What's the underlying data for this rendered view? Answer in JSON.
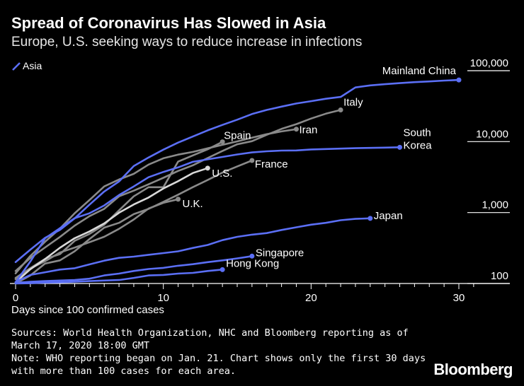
{
  "title": "Spread of Coronavirus Has Slowed in Asia",
  "subtitle": "Europe, U.S. seeking ways to reduce increase in infections",
  "xlabel": "Days since 100 confirmed cases",
  "notes": [
    "Sources: World Health Organization, NHC and Bloomberg reporting as of",
    "March 17, 2020 18:00 GMT",
    "Note: WHO reporting began on Jan. 21. Chart shows only the first 30 days",
    "with more than 100 cases for each area."
  ],
  "brand": "Bloomberg",
  "colors": {
    "asia": "#5b6ff5",
    "other": "#8a8a8a",
    "us": "#d9d9d9",
    "background": "#000000"
  },
  "chart_data": {
    "type": "line",
    "title": "Spread of Coronavirus Has Slowed in Asia",
    "xlabel": "Days since 100 confirmed cases",
    "ylabel": "",
    "xlim": [
      0,
      31
    ],
    "ylim": [
      100,
      130000
    ],
    "yscale": "log",
    "x_ticks": [
      0,
      10,
      20,
      30
    ],
    "y_ticks": [
      100,
      1000,
      10000,
      100000
    ],
    "y_tick_labels": [
      "100",
      "1,000",
      "10,000",
      "100,000"
    ],
    "legend": {
      "entries": [
        "Asia"
      ],
      "placement": "top-left"
    },
    "series": [
      {
        "name": "Mainland China",
        "group": "asia",
        "label": "Mainland China",
        "x": [
          0,
          1,
          2,
          3,
          4,
          5,
          6,
          7,
          8,
          9,
          10,
          11,
          12,
          13,
          14,
          15,
          16,
          17,
          18,
          19,
          20,
          21,
          22,
          23,
          24,
          25,
          26,
          27,
          28,
          29,
          30
        ],
        "y": [
          200,
          300,
          440,
          570,
          830,
          1290,
          1980,
          2740,
          4520,
          5970,
          7710,
          9690,
          11800,
          14400,
          17200,
          20400,
          24500,
          28000,
          31200,
          34500,
          37200,
          40200,
          42700,
          58000,
          62000,
          64500,
          66800,
          69000,
          70500,
          72500,
          74000
        ]
      },
      {
        "name": "South Korea",
        "group": "asia",
        "label": "South Korea",
        "x": [
          0,
          1,
          2,
          3,
          4,
          5,
          6,
          7,
          8,
          9,
          10,
          11,
          12,
          13,
          14,
          15,
          16,
          17,
          18,
          19,
          20,
          21,
          22,
          23,
          24,
          25,
          26
        ],
        "y": [
          104,
          204,
          433,
          602,
          833,
          977,
          1261,
          1766,
          2337,
          3150,
          3736,
          4335,
          5186,
          5621,
          6088,
          6593,
          7041,
          7313,
          7478,
          7513,
          7755,
          7869,
          7979,
          8086,
          8162,
          8236,
          8320
        ]
      },
      {
        "name": "Japan",
        "group": "asia",
        "label": "Japan",
        "x": [
          0,
          1,
          2,
          3,
          4,
          5,
          6,
          7,
          8,
          9,
          10,
          11,
          12,
          13,
          14,
          15,
          16,
          17,
          18,
          19,
          20,
          21,
          22,
          23,
          24
        ],
        "y": [
          105,
          132,
          144,
          157,
          164,
          186,
          210,
          230,
          239,
          254,
          268,
          284,
          317,
          349,
          408,
          455,
          488,
          514,
          568,
          620,
          675,
          716,
          780,
          814,
          829
        ]
      },
      {
        "name": "Singapore",
        "group": "asia",
        "label": "Singapore",
        "x": [
          0,
          1,
          2,
          3,
          4,
          5,
          6,
          7,
          8,
          9,
          10,
          11,
          12,
          13,
          14,
          15,
          16
        ],
        "y": [
          102,
          106,
          108,
          110,
          112,
          117,
          130,
          138,
          150,
          160,
          166,
          178,
          187,
          200,
          212,
          226,
          243
        ]
      },
      {
        "name": "Hong Kong",
        "group": "asia",
        "label": "Hong Kong",
        "x": [
          0,
          1,
          2,
          3,
          4,
          5,
          6,
          7,
          8,
          9,
          10,
          11,
          12,
          13,
          14
        ],
        "y": [
          100,
          101,
          103,
          104,
          106,
          108,
          110,
          112,
          120,
          130,
          132,
          138,
          141,
          150,
          157
        ]
      },
      {
        "name": "Italy",
        "group": "other",
        "label": "Italy",
        "x": [
          0,
          1,
          2,
          3,
          4,
          5,
          6,
          7,
          8,
          9,
          10,
          11,
          12,
          13,
          14,
          15,
          16,
          17,
          18,
          19,
          20,
          21,
          22
        ],
        "y": [
          150,
          229,
          322,
          453,
          655,
          888,
          1128,
          1694,
          2036,
          2502,
          3089,
          3858,
          4636,
          5883,
          7375,
          9172,
          10149,
          12462,
          15113,
          17660,
          21157,
          24747,
          27980
        ]
      },
      {
        "name": "Iran",
        "group": "other",
        "label": "Iran",
        "x": [
          0,
          1,
          2,
          3,
          4,
          5,
          6,
          7,
          8,
          9,
          10,
          11,
          12,
          13,
          14,
          15,
          16,
          17,
          18,
          19
        ],
        "y": [
          139,
          245,
          388,
          593,
          978,
          1501,
          2336,
          2922,
          3513,
          4747,
          5823,
          6566,
          7161,
          8042,
          9000,
          10075,
          11364,
          12729,
          13938,
          14991
        ]
      },
      {
        "name": "Spain",
        "group": "other",
        "label": "Spain",
        "x": [
          0,
          1,
          2,
          3,
          4,
          5,
          6,
          7,
          8,
          9,
          10,
          11,
          12,
          13,
          14
        ],
        "y": [
          120,
          165,
          222,
          259,
          400,
          500,
          673,
          1073,
          1695,
          2277,
          2277,
          5232,
          6391,
          7798,
          9942
        ]
      },
      {
        "name": "France",
        "group": "other",
        "label": "France",
        "x": [
          0,
          1,
          2,
          3,
          4,
          5,
          6,
          7,
          8,
          9,
          10,
          11,
          12,
          13,
          14,
          15,
          16
        ],
        "y": [
          100,
          130,
          191,
          212,
          285,
          423,
          613,
          716,
          949,
          1126,
          1412,
          1784,
          2281,
          2876,
          3661,
          4469,
          5423
        ]
      },
      {
        "name": "U.K.",
        "group": "other",
        "label": "U.K.",
        "x": [
          0,
          1,
          2,
          3,
          4,
          5,
          6,
          7,
          8,
          9,
          10,
          11
        ],
        "y": [
          115,
          163,
          206,
          273,
          321,
          382,
          456,
          590,
          798,
          1140,
          1372,
          1543
        ]
      },
      {
        "name": "U.S.",
        "group": "us",
        "label": "U.S.",
        "x": [
          0,
          1,
          2,
          3,
          4,
          5,
          6,
          7,
          8,
          9,
          10,
          11,
          12,
          13
        ],
        "y": [
          104,
          159,
          221,
          319,
          435,
          541,
          704,
          994,
          1301,
          1630,
          2183,
          2770,
          3613,
          4230
        ]
      }
    ]
  }
}
